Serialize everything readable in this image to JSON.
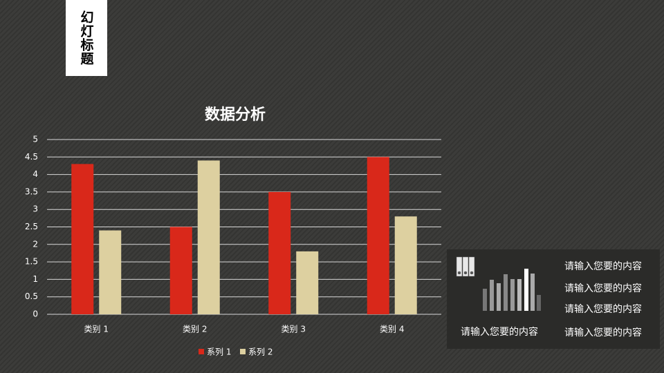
{
  "slide": {
    "title": "幻灯标题"
  },
  "chart_data": {
    "type": "bar",
    "title": "数据分析",
    "categories": [
      "类别 1",
      "类别 2",
      "类别 3",
      "类别 4"
    ],
    "series": [
      {
        "name": "系列 1",
        "color": "#d9281a",
        "values": [
          4.3,
          2.5,
          3.5,
          4.5
        ]
      },
      {
        "name": "系列 2",
        "color": "#ddd0a0",
        "values": [
          2.4,
          4.4,
          1.8,
          2.8
        ]
      }
    ],
    "ylim": [
      0,
      5
    ],
    "yticks": [
      0,
      0.5,
      1,
      1.5,
      2,
      2.5,
      3,
      3.5,
      4,
      4.5,
      5
    ],
    "grid": true,
    "legend": "bottom"
  },
  "panel": {
    "texts": [
      "请输入您要的内容",
      "请输入您要的内容",
      "请输入您要的内容",
      "请输入您要的内容",
      "请输入您要的内容"
    ]
  }
}
